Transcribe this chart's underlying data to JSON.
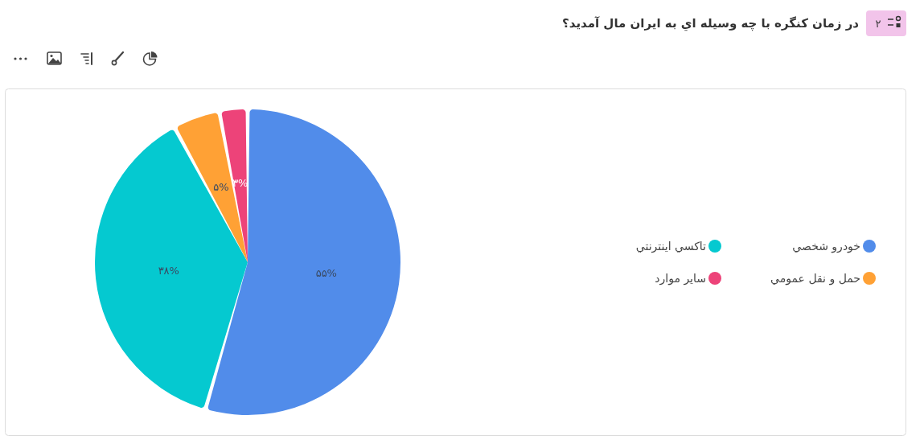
{
  "chart_data": {
    "type": "pie",
    "title": "در زمان کنگره با چه وسيله اي به ايران مال آمديد؟",
    "annotations": [
      "۲"
    ],
    "categories": [
      "خودرو شخصي",
      "تاکسي اينترنتي",
      "حمل و نقل عمومي",
      "ساير موارد"
    ],
    "values": [
      55,
      38,
      5,
      3
    ],
    "value_labels": [
      "۵۵%",
      "۳۸%",
      "۵%",
      "۳%"
    ],
    "colors": [
      "#518cea",
      "#05c9d0",
      "#ffa135",
      "#ed4379"
    ],
    "legend": "right"
  }
}
